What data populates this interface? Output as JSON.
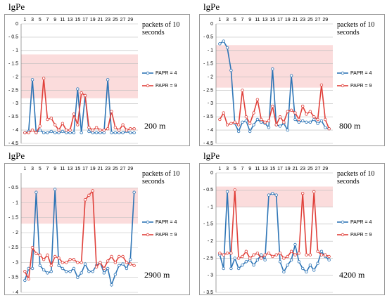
{
  "chart_data": [
    {
      "type": "line",
      "title": "lgPe",
      "x_label": "packets of 10 seconds",
      "annotation": "200 m",
      "x": [
        1,
        2,
        3,
        4,
        5,
        6,
        7,
        8,
        9,
        10,
        11,
        12,
        13,
        14,
        15,
        16,
        17,
        18,
        19,
        20,
        21,
        22,
        23,
        24,
        25,
        26,
        27,
        28,
        29,
        30
      ],
      "xlim": [
        0,
        31
      ],
      "xticks": [
        1,
        3,
        5,
        7,
        9,
        11,
        13,
        15,
        17,
        19,
        21,
        23,
        25,
        27,
        29
      ],
      "ylim": [
        -4.5,
        0
      ],
      "yticks": [
        0,
        {
          "value": -0.5,
          "label": "- 0.5"
        },
        {
          "value": -1,
          "label": "- 1"
        },
        {
          "value": -1.5,
          "label": "- 1.5"
        },
        {
          "value": -2,
          "label": "- 2"
        },
        {
          "value": -2.5,
          "label": "- 2.5"
        },
        {
          "value": -3,
          "label": "- 3"
        },
        {
          "value": -3.5,
          "label": "- 3.5"
        },
        {
          "value": -4,
          "label": "- 4"
        },
        {
          "value": -4.5,
          "label": "- 4.5"
        }
      ],
      "band": [
        -1.15,
        -2.8
      ],
      "band_color": "#fbdcdc",
      "grid": true,
      "legend": "right",
      "series": [
        {
          "name": "PAPR = 4",
          "color": "#2e75b6",
          "values": [
            -4.1,
            -4.05,
            -2.1,
            -4.1,
            -4.0,
            -4.1,
            -4.1,
            -4.05,
            -4.1,
            -4.1,
            -4.05,
            -4.1,
            -4.1,
            -4.1,
            -2.45,
            -4.1,
            -2.7,
            -4.05,
            -4.1,
            -4.1,
            -4.1,
            -4.1,
            -2.1,
            -4.1,
            -4.1,
            -4.1,
            -4.1,
            -4.05,
            -4.1,
            -4.1
          ]
        },
        {
          "name": "PAPR = 9",
          "color": "#e0403a",
          "values": [
            -4.1,
            -4.1,
            -4.0,
            -4.1,
            -3.85,
            -2.05,
            -3.6,
            -3.55,
            -3.8,
            -4.0,
            -3.75,
            -4.0,
            -4.0,
            -3.4,
            -3.8,
            -2.6,
            -2.7,
            -3.9,
            -4.0,
            -3.9,
            -4.0,
            -4.0,
            -3.95,
            -3.3,
            -3.9,
            -4.0,
            -3.8,
            -4.0,
            -3.95,
            -3.95
          ]
        }
      ]
    },
    {
      "type": "line",
      "title": "lgPe",
      "x_label": "packets of 10 seconds",
      "annotation": "800 m",
      "x": [
        1,
        2,
        3,
        4,
        5,
        6,
        7,
        8,
        9,
        10,
        11,
        12,
        13,
        14,
        15,
        16,
        17,
        18,
        19,
        20,
        21,
        22,
        23,
        24,
        25,
        26,
        27,
        28,
        29,
        30
      ],
      "xlim": [
        0,
        31
      ],
      "xticks": [
        1,
        3,
        5,
        7,
        9,
        11,
        13,
        15,
        17,
        19,
        21,
        23,
        25,
        27,
        29
      ],
      "ylim": [
        -4.5,
        0
      ],
      "yticks": [
        0,
        {
          "value": -0.5,
          "label": "- 0.5"
        },
        {
          "value": -1,
          "label": "- 1"
        },
        {
          "value": -1.5,
          "label": "- 1.5"
        },
        {
          "value": -2,
          "label": "- 2"
        },
        {
          "value": -2.5,
          "label": "- 2.5"
        },
        {
          "value": -3,
          "label": "- 3"
        },
        {
          "value": -3.5,
          "label": "- 3.5"
        },
        {
          "value": -4,
          "label": "- 4"
        },
        {
          "value": -4.5,
          "label": "- 4.5"
        }
      ],
      "band": [
        -0.8,
        -2.4
      ],
      "band_color": "#fbdcdc",
      "grid": true,
      "legend": "right",
      "series": [
        {
          "name": "PAPR = 4",
          "color": "#2e75b6",
          "values": [
            -0.75,
            -0.65,
            -0.9,
            -1.75,
            -3.75,
            -4.05,
            -3.7,
            -3.65,
            -4.05,
            -3.8,
            -3.6,
            -3.7,
            -3.75,
            -3.9,
            -1.7,
            -3.8,
            -3.85,
            -3.75,
            -4.0,
            -1.95,
            -3.6,
            -3.7,
            -3.65,
            -3.7,
            -3.7,
            -3.6,
            -3.75,
            -3.65,
            -3.9,
            -3.95
          ]
        },
        {
          "name": "PAPR = 9",
          "color": "#e0403a",
          "values": [
            -3.6,
            -3.35,
            -3.8,
            -3.75,
            -3.7,
            -3.8,
            -2.5,
            -3.5,
            -3.75,
            -3.35,
            -2.85,
            -3.6,
            -3.7,
            -3.65,
            -3.1,
            -3.8,
            -3.5,
            -3.7,
            -3.3,
            -3.25,
            -3.35,
            -3.6,
            -3.1,
            -3.4,
            -3.3,
            -3.5,
            -3.6,
            -2.3,
            -3.6,
            -3.95
          ]
        }
      ]
    },
    {
      "type": "line",
      "title": "lgPe",
      "x_label": "packets of 10 seconds",
      "annotation": "2900 m",
      "x": [
        1,
        2,
        3,
        4,
        5,
        6,
        7,
        8,
        9,
        10,
        11,
        12,
        13,
        14,
        15,
        16,
        17,
        18,
        19,
        20,
        21,
        22,
        23,
        24,
        25,
        26,
        27,
        28,
        29,
        30
      ],
      "xlim": [
        0,
        31
      ],
      "xticks": [
        1,
        3,
        5,
        7,
        9,
        11,
        13,
        15,
        17,
        19,
        21,
        23,
        25,
        27,
        29
      ],
      "ylim": [
        -4,
        0
      ],
      "yticks": [
        {
          "value": -0.5,
          "label": "- 0.5"
        },
        {
          "value": -1,
          "label": "- 1"
        },
        {
          "value": -1.5,
          "label": "- 1.5"
        },
        {
          "value": -2,
          "label": "- 2"
        },
        {
          "value": -2.5,
          "label": "- 2.5"
        },
        {
          "value": -3,
          "label": "- 3"
        },
        {
          "value": -3.5,
          "label": "- 3.5"
        },
        {
          "value": -4,
          "label": "- 4"
        }
      ],
      "band": [
        -0.5,
        -1.7
      ],
      "band_color": "#fbdcdc",
      "grid": true,
      "legend": "right",
      "series": [
        {
          "name": "PAPR = 4",
          "color": "#2e75b6",
          "values": [
            -3.6,
            -3.2,
            -3.2,
            -0.65,
            -3.1,
            -3.25,
            -3.35,
            -3.3,
            -0.55,
            -3.1,
            -3.2,
            -3.3,
            -3.3,
            -3.2,
            -3.5,
            -3.35,
            -3.05,
            -3.3,
            -3.3,
            -3.1,
            -3.0,
            -3.35,
            -3.2,
            -3.75,
            -3.4,
            -3.1,
            -3.05,
            -3.2,
            -2.9,
            -0.65
          ]
        },
        {
          "name": "PAPR = 9",
          "color": "#e0403a",
          "values": [
            -3.3,
            -3.55,
            -2.5,
            -2.7,
            -2.75,
            -2.9,
            -2.75,
            -3.1,
            -2.8,
            -2.85,
            -3.0,
            -3.0,
            -2.9,
            -2.9,
            -3.0,
            -3.0,
            -0.9,
            -0.75,
            -0.6,
            -3.15,
            -3.0,
            -3.2,
            -2.95,
            -2.8,
            -3.0,
            -2.8,
            -2.8,
            -3.0,
            -3.05,
            -3.1
          ]
        }
      ]
    },
    {
      "type": "line",
      "title": "lgPe",
      "x_label": "packets of 10 seconds",
      "annotation": "4200 m",
      "x": [
        1,
        2,
        3,
        4,
        5,
        6,
        7,
        8,
        9,
        10,
        11,
        12,
        13,
        14,
        15,
        16,
        17,
        18,
        19,
        20,
        21,
        22,
        23,
        24,
        25,
        26,
        27,
        28,
        29,
        30
      ],
      "xlim": [
        0,
        31
      ],
      "xticks": [
        1,
        3,
        5,
        7,
        9,
        11,
        13,
        15,
        17,
        19,
        21,
        23,
        25,
        27,
        29
      ],
      "ylim": [
        -3.5,
        0
      ],
      "yticks": [
        0,
        {
          "value": -0.5,
          "label": "- 0.5"
        },
        {
          "value": -1,
          "label": "- 1"
        },
        {
          "value": -1.5,
          "label": "- 1.5"
        },
        {
          "value": -2,
          "label": "- 2"
        },
        {
          "value": -2.5,
          "label": "- 2.5"
        },
        {
          "value": -3,
          "label": "- 3"
        },
        {
          "value": -3.5,
          "label": "- 3.5"
        }
      ],
      "band": [
        -0.4,
        -1.0
      ],
      "band_color": "#fbdcdc",
      "grid": true,
      "legend": "right",
      "series": [
        {
          "name": "PAPR = 4",
          "color": "#2e75b6",
          "values": [
            -2.4,
            -2.8,
            -0.55,
            -2.8,
            -2.5,
            -2.8,
            -2.7,
            -2.6,
            -2.55,
            -2.7,
            -2.55,
            -2.4,
            -2.55,
            -0.65,
            -0.6,
            -0.65,
            -2.6,
            -2.9,
            -2.7,
            -2.55,
            -2.1,
            -2.6,
            -2.8,
            -2.9,
            -2.7,
            -2.85,
            -2.65,
            -2.3,
            -2.45,
            -2.55
          ]
        },
        {
          "name": "PAPR = 9",
          "color": "#e0403a",
          "values": [
            -2.35,
            -2.4,
            -2.35,
            -2.35,
            -0.5,
            -2.5,
            -2.45,
            -2.3,
            -2.5,
            -2.4,
            -2.35,
            -2.5,
            -2.4,
            -2.35,
            -2.45,
            -2.4,
            -2.35,
            -2.5,
            -2.45,
            -2.3,
            -2.4,
            -2.35,
            -0.6,
            -2.4,
            -2.4,
            -0.55,
            -2.3,
            -2.4,
            -2.4,
            -2.45
          ]
        }
      ]
    }
  ]
}
